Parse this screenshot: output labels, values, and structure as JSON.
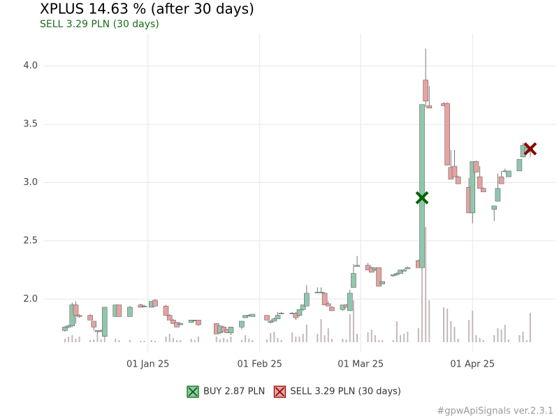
{
  "chart_data": {
    "type": "candlestick",
    "title": "XPLUS 14.63 % (after 30 days)",
    "subtitle": "SELL 3.29 PLN (30 days)",
    "footer": "#gpwApiSignals ver.2.3.1",
    "x": [
      "2024-12-09",
      "2024-12-10",
      "2024-12-11",
      "2024-12-12",
      "2024-12-13",
      "2024-12-16",
      "2024-12-17",
      "2024-12-18",
      "2024-12-19",
      "2024-12-20",
      "2024-12-23",
      "2024-12-24",
      "2024-12-27",
      "2024-12-30",
      "2024-12-31",
      "2025-01-02",
      "2025-01-03",
      "2025-01-06",
      "2025-01-07",
      "2025-01-08",
      "2025-01-09",
      "2025-01-10",
      "2025-01-13",
      "2025-01-14",
      "2025-01-15",
      "2025-01-20",
      "2025-01-21",
      "2025-01-22",
      "2025-01-23",
      "2025-01-24",
      "2025-01-27",
      "2025-01-28",
      "2025-01-29",
      "2025-01-30",
      "2025-02-03",
      "2025-02-04",
      "2025-02-05",
      "2025-02-06",
      "2025-02-07",
      "2025-02-10",
      "2025-02-11",
      "2025-02-12",
      "2025-02-13",
      "2025-02-14",
      "2025-02-17",
      "2025-02-18",
      "2025-02-19",
      "2025-02-20",
      "2025-02-21",
      "2025-02-24",
      "2025-02-25",
      "2025-02-26",
      "2025-02-27",
      "2025-02-28",
      "2025-03-03",
      "2025-03-04",
      "2025-03-05",
      "2025-03-06",
      "2025-03-07",
      "2025-03-10",
      "2025-03-11",
      "2025-03-12",
      "2025-03-13",
      "2025-03-14",
      "2025-03-17",
      "2025-03-18",
      "2025-03-19",
      "2025-03-20",
      "2025-03-24",
      "2025-03-25",
      "2025-03-26",
      "2025-03-27",
      "2025-03-28",
      "2025-03-31",
      "2025-04-01",
      "2025-04-02",
      "2025-04-03",
      "2025-04-04",
      "2025-04-07",
      "2025-04-08",
      "2025-04-09",
      "2025-04-10",
      "2025-04-11",
      "2025-04-14",
      "2025-04-15",
      "2025-04-16",
      "2025-04-17"
    ],
    "open": [
      1.73,
      1.76,
      1.77,
      1.95,
      1.86,
      1.86,
      1.81,
      1.72,
      1.73,
      1.68,
      1.85,
      1.95,
      1.85,
      1.95,
      1.94,
      1.93,
      1.99,
      1.94,
      1.86,
      1.82,
      1.8,
      1.78,
      1.8,
      1.82,
      1.82,
      1.79,
      1.71,
      1.76,
      1.74,
      1.71,
      1.76,
      1.84,
      1.86,
      1.85,
      1.86,
      1.8,
      1.81,
      1.83,
      1.88,
      1.88,
      1.88,
      1.86,
      1.91,
      1.94,
      2.06,
      2.06,
      2.05,
      1.96,
      1.93,
      1.91,
      1.95,
      1.9,
      2.1,
      2.28,
      2.29,
      2.27,
      2.25,
      2.27,
      2.13,
      2.2,
      2.21,
      2.22,
      2.24,
      2.26,
      2.33,
      2.27,
      3.88,
      3.66,
      3.68,
      3.68,
      3.13,
      3.14,
      3.05,
      2.96,
      2.74,
      3.18,
      3.05,
      2.95,
      2.77,
      2.84,
      3.05,
      3.1,
      3.05,
      3.1,
      3.22,
      3.26,
      3.28
    ],
    "high": [
      1.77,
      1.78,
      1.97,
      1.98,
      1.87,
      1.87,
      1.81,
      1.73,
      1.74,
      1.93,
      1.95,
      1.95,
      1.94,
      1.96,
      1.95,
      1.98,
      2.0,
      1.95,
      1.87,
      1.83,
      1.8,
      1.8,
      1.82,
      1.82,
      1.82,
      1.79,
      1.77,
      1.77,
      1.74,
      1.76,
      1.81,
      1.86,
      1.87,
      1.87,
      1.86,
      1.82,
      1.84,
      1.89,
      1.89,
      1.89,
      1.89,
      1.91,
      1.95,
      2.12,
      2.1,
      2.1,
      2.06,
      1.98,
      1.94,
      1.95,
      1.96,
      2.08,
      2.3,
      2.37,
      2.31,
      2.28,
      2.27,
      2.27,
      2.15,
      2.21,
      2.23,
      2.25,
      2.26,
      2.28,
      2.34,
      3.67,
      4.15,
      3.83,
      3.69,
      3.69,
      3.28,
      3.28,
      3.06,
      3.04,
      3.18,
      3.19,
      3.14,
      2.96,
      2.8,
      3.08,
      3.1,
      3.12,
      3.1,
      3.2,
      3.34,
      3.32,
      3.31
    ],
    "low": [
      1.72,
      1.75,
      1.76,
      1.79,
      1.84,
      1.82,
      1.73,
      1.7,
      1.72,
      1.68,
      1.85,
      1.85,
      1.85,
      1.93,
      1.93,
      1.93,
      1.94,
      1.86,
      1.82,
      1.79,
      1.76,
      1.78,
      1.8,
      1.81,
      1.77,
      1.7,
      1.7,
      1.72,
      1.71,
      1.69,
      1.74,
      1.84,
      1.85,
      1.85,
      1.82,
      1.79,
      1.81,
      1.83,
      1.87,
      1.87,
      1.82,
      1.85,
      1.9,
      1.94,
      2.05,
      2.05,
      1.95,
      1.94,
      1.9,
      1.9,
      1.93,
      1.9,
      2.1,
      2.28,
      2.25,
      2.23,
      2.24,
      2.11,
      2.13,
      2.19,
      2.2,
      2.22,
      2.24,
      2.26,
      2.27,
      2.27,
      3.65,
      3.64,
      3.66,
      3.15,
      3.03,
      3.05,
      2.99,
      2.74,
      2.65,
      3.09,
      2.95,
      2.92,
      2.67,
      2.84,
      2.99,
      3.09,
      3.05,
      3.1,
      3.22,
      3.25,
      3.22
    ],
    "close": [
      1.76,
      1.77,
      1.95,
      1.86,
      1.85,
      1.82,
      1.76,
      1.73,
      1.72,
      1.93,
      1.95,
      1.85,
      1.93,
      1.93,
      1.94,
      1.98,
      1.94,
      1.86,
      1.82,
      1.79,
      1.76,
      1.79,
      1.82,
      1.82,
      1.78,
      1.7,
      1.77,
      1.72,
      1.71,
      1.76,
      1.81,
      1.86,
      1.86,
      1.87,
      1.82,
      1.81,
      1.83,
      1.86,
      1.88,
      1.88,
      1.84,
      1.91,
      1.95,
      2.05,
      2.06,
      2.06,
      1.95,
      1.94,
      1.9,
      1.95,
      1.93,
      2.05,
      2.22,
      2.29,
      2.25,
      2.23,
      2.27,
      2.11,
      2.15,
      2.21,
      2.22,
      2.25,
      2.25,
      2.27,
      2.27,
      3.67,
      3.7,
      3.64,
      3.66,
      3.15,
      3.03,
      3.05,
      2.99,
      2.74,
      3.18,
      3.09,
      2.95,
      2.92,
      2.8,
      2.95,
      2.99,
      3.1,
      3.1,
      3.2,
      3.32,
      3.3,
      3.3
    ],
    "volume": [
      5,
      8,
      10,
      5,
      8,
      3,
      4,
      12,
      4,
      8,
      5,
      3,
      3,
      2,
      2,
      3,
      2,
      8,
      12,
      6,
      3,
      3,
      5,
      3,
      8,
      8,
      4,
      6,
      4,
      8,
      3,
      10,
      5,
      3,
      4,
      13,
      15,
      6,
      3,
      14,
      8,
      8,
      12,
      25,
      12,
      33,
      10,
      20,
      5,
      5,
      4,
      40,
      60,
      12,
      14,
      18,
      10,
      3,
      3,
      3,
      30,
      10,
      12,
      15,
      20,
      110,
      165,
      60,
      50,
      48,
      30,
      22,
      5,
      32,
      45,
      10,
      6,
      3,
      10,
      20,
      18,
      25,
      4,
      10,
      15,
      3,
      42
    ],
    "up_color": "#8fc7ad",
    "down_color": "#e8a1a1",
    "volume_color": "#c4b8b8",
    "xlim": [
      "2024-12-03",
      "2025-04-24"
    ],
    "xticks": [
      {
        "value": "2025-01-01",
        "label": "01 Jan 25"
      },
      {
        "value": "2025-02-01",
        "label": "01 Feb 25"
      },
      {
        "value": "2025-03-01",
        "label": "01 Mar 25"
      },
      {
        "value": "2025-04-01",
        "label": "01 Apr 25"
      }
    ],
    "ylim": [
      1.54,
      4.28
    ],
    "yticks": [
      {
        "value": 2,
        "label": "2.0"
      },
      2.5,
      {
        "value": 3,
        "label": "3.0"
      },
      3.5,
      {
        "value": 4,
        "label": "4.0"
      }
    ],
    "y2lim": [
      0,
      200
    ],
    "grid": true,
    "signals": [
      {
        "name": "BUY 2.87 PLN",
        "x": "2025-03-18",
        "value": 2.87,
        "color": "#006400"
      },
      {
        "name": "SELL 3.29 PLN (30 days)",
        "x": "2025-04-17",
        "value": 3.29,
        "color": "#8b0000"
      }
    ]
  }
}
